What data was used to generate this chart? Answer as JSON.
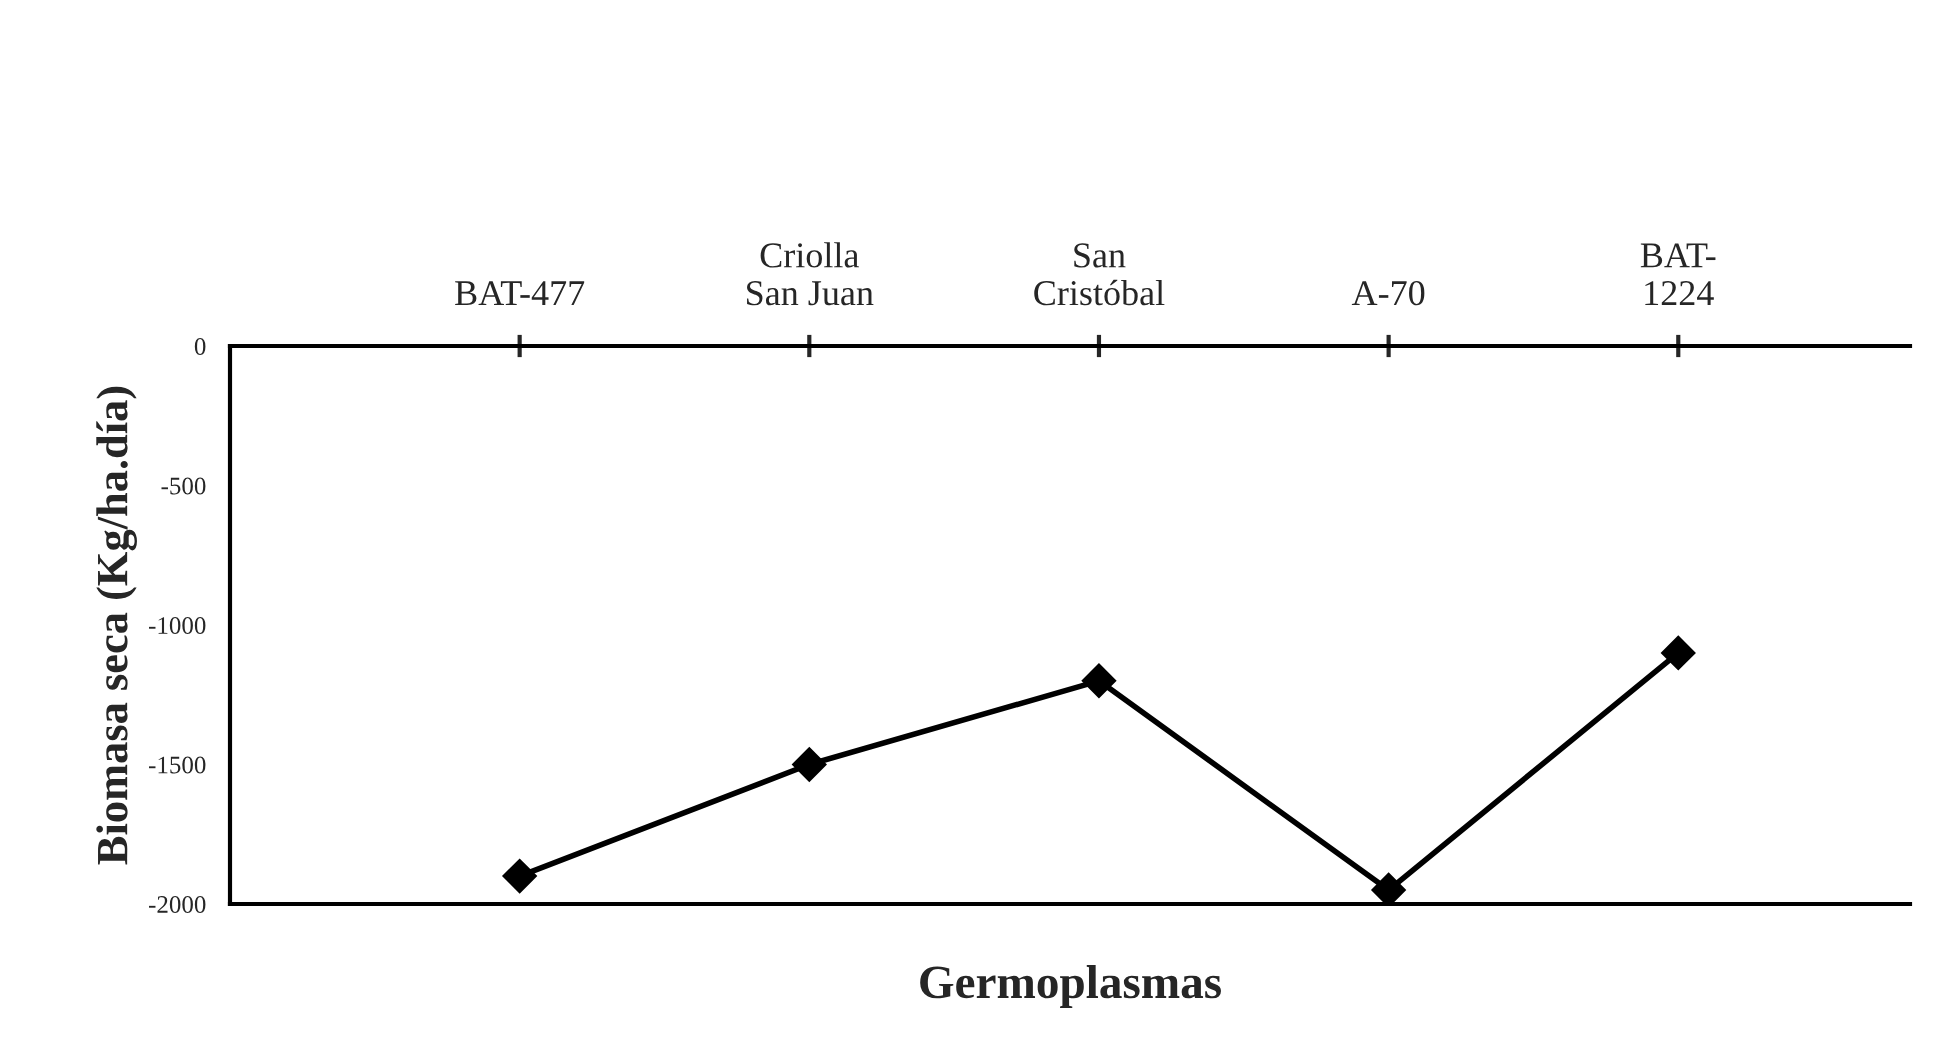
{
  "chart_data": {
    "type": "line",
    "xlabel": "Germoplasmas",
    "ylabel": "Biomasa seca (Kg/ha.día)",
    "categories": [
      "BAT-477",
      "Criolla\nSan Juan",
      "San\nCristóbal",
      "A-70",
      "BAT-\n1224"
    ],
    "series": [
      {
        "color": "#000000",
        "values": [
          -1900,
          -1500,
          -1200,
          -1950,
          -1100
        ]
      }
    ],
    "ylim": [
      -2000,
      0
    ],
    "yticks": [
      -2000,
      -1500,
      -1000,
      -500,
      0
    ],
    "marker": "diamond",
    "line_style": "solid",
    "grid": false,
    "legend": false
  }
}
